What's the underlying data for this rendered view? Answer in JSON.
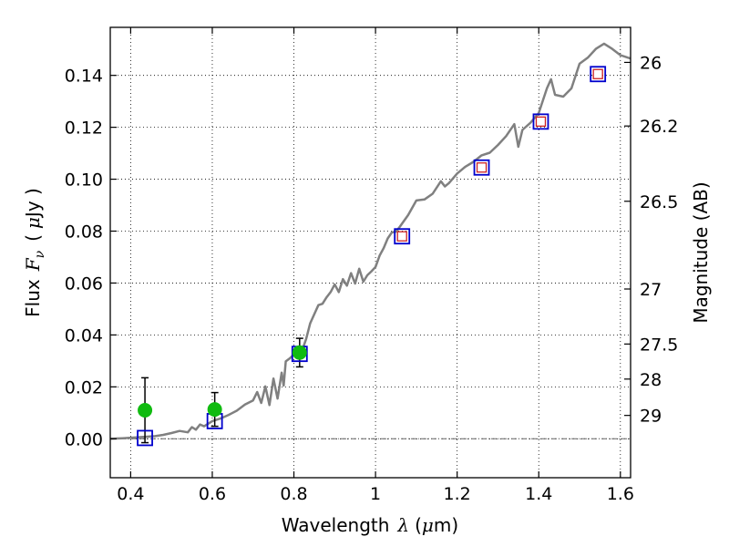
{
  "chart_data": {
    "type": "scatter",
    "xlabel": "Wavelength",
    "xlabel_symbol": "λ",
    "xlabel_unit_open": "(",
    "xlabel_unit_mu": "μ",
    "xlabel_unit_rest": "m)",
    "ylabel": "Flux",
    "ylabel_symbol": "F",
    "ylabel_subscript": "ν",
    "ylabel_unit_open": "(",
    "ylabel_unit_mu": "μ",
    "ylabel_unit_rest": "Jy )",
    "y2label": "Magnitude (AB)",
    "xlim": [
      0.35,
      1.625
    ],
    "ylim": [
      -0.015,
      0.1585
    ],
    "x_ticks": [
      0.4,
      0.6,
      0.8,
      1.0,
      1.2,
      1.4,
      1.6
    ],
    "x_tick_labels": [
      "0.4",
      "0.6",
      "0.8",
      "1",
      "1.2",
      "1.4",
      "1.6"
    ],
    "y_ticks": [
      0.0,
      0.02,
      0.04,
      0.06,
      0.08,
      0.1,
      0.12,
      0.14
    ],
    "y_tick_labels": [
      "0.00",
      "0.02",
      "0.04",
      "0.06",
      "0.08",
      "0.10",
      "0.12",
      "0.14"
    ],
    "y2_ticks": [
      {
        "label": "26",
        "flux": 0.145
      },
      {
        "label": "26.2",
        "flux": 0.1205
      },
      {
        "label": "26.5",
        "flux": 0.0915
      },
      {
        "label": "27",
        "flux": 0.0577
      },
      {
        "label": "27.5",
        "flux": 0.0365
      },
      {
        "label": "28",
        "flux": 0.023
      },
      {
        "label": "29",
        "flux": 0.009
      }
    ],
    "grid": true,
    "zero_line": true,
    "colors": {
      "model": "#808080",
      "observed": "#11bb11",
      "errorbar": "#000000",
      "box_outer": "#0000cc",
      "box_inner": "#cc2222"
    },
    "model_spectrum": {
      "x": [
        0.35,
        0.38,
        0.41,
        0.44,
        0.46,
        0.48,
        0.5,
        0.52,
        0.54,
        0.55,
        0.56,
        0.57,
        0.58,
        0.6,
        0.62,
        0.64,
        0.66,
        0.68,
        0.7,
        0.71,
        0.72,
        0.73,
        0.74,
        0.75,
        0.76,
        0.77,
        0.775,
        0.78,
        0.79,
        0.8,
        0.81,
        0.82,
        0.83,
        0.84,
        0.85,
        0.86,
        0.87,
        0.88,
        0.89,
        0.9,
        0.91,
        0.92,
        0.93,
        0.94,
        0.95,
        0.96,
        0.97,
        0.98,
        0.99,
        1.0,
        1.01,
        1.02,
        1.03,
        1.04,
        1.05,
        1.06,
        1.08,
        1.1,
        1.12,
        1.14,
        1.16,
        1.17,
        1.18,
        1.2,
        1.22,
        1.24,
        1.26,
        1.28,
        1.3,
        1.32,
        1.34,
        1.35,
        1.36,
        1.38,
        1.4,
        1.42,
        1.43,
        1.44,
        1.46,
        1.48,
        1.5,
        1.52,
        1.54,
        1.56,
        1.58,
        1.6,
        1.625
      ],
      "y": [
        0.0,
        0.0002,
        0.0005,
        0.0008,
        0.001,
        0.0015,
        0.0022,
        0.003,
        0.0025,
        0.0045,
        0.0035,
        0.0055,
        0.0048,
        0.0068,
        0.0078,
        0.0092,
        0.0108,
        0.0132,
        0.0148,
        0.018,
        0.0138,
        0.0202,
        0.013,
        0.0232,
        0.0155,
        0.0255,
        0.0205,
        0.0298,
        0.031,
        0.0325,
        0.0335,
        0.034,
        0.0385,
        0.0445,
        0.048,
        0.0515,
        0.052,
        0.0545,
        0.0565,
        0.0595,
        0.0565,
        0.0615,
        0.059,
        0.0638,
        0.0598,
        0.0655,
        0.0605,
        0.063,
        0.0645,
        0.0662,
        0.0706,
        0.0735,
        0.0772,
        0.0795,
        0.0798,
        0.0818,
        0.0862,
        0.0918,
        0.0922,
        0.0944,
        0.0992,
        0.0972,
        0.0985,
        0.1022,
        0.1048,
        0.1067,
        0.1092,
        0.1102,
        0.1132,
        0.1166,
        0.1212,
        0.1125,
        0.119,
        0.1218,
        0.1255,
        0.135,
        0.1385,
        0.1325,
        0.1318,
        0.135,
        0.1445,
        0.1468,
        0.1502,
        0.1522,
        0.1502,
        0.1478,
        0.1465
      ]
    },
    "observed_points": [
      {
        "x": 0.435,
        "y": 0.011,
        "err": 0.0125
      },
      {
        "x": 0.606,
        "y": 0.0113,
        "err": 0.0065
      },
      {
        "x": 0.814,
        "y": 0.0332,
        "err": 0.0055
      }
    ],
    "synthetic_points": [
      {
        "x": 0.435,
        "y": 0.0003
      },
      {
        "x": 0.606,
        "y": 0.0068
      },
      {
        "x": 0.814,
        "y": 0.0327
      },
      {
        "x": 1.065,
        "y": 0.078
      },
      {
        "x": 1.26,
        "y": 0.1045
      },
      {
        "x": 1.405,
        "y": 0.1222
      },
      {
        "x": 1.545,
        "y": 0.1405
      }
    ]
  }
}
